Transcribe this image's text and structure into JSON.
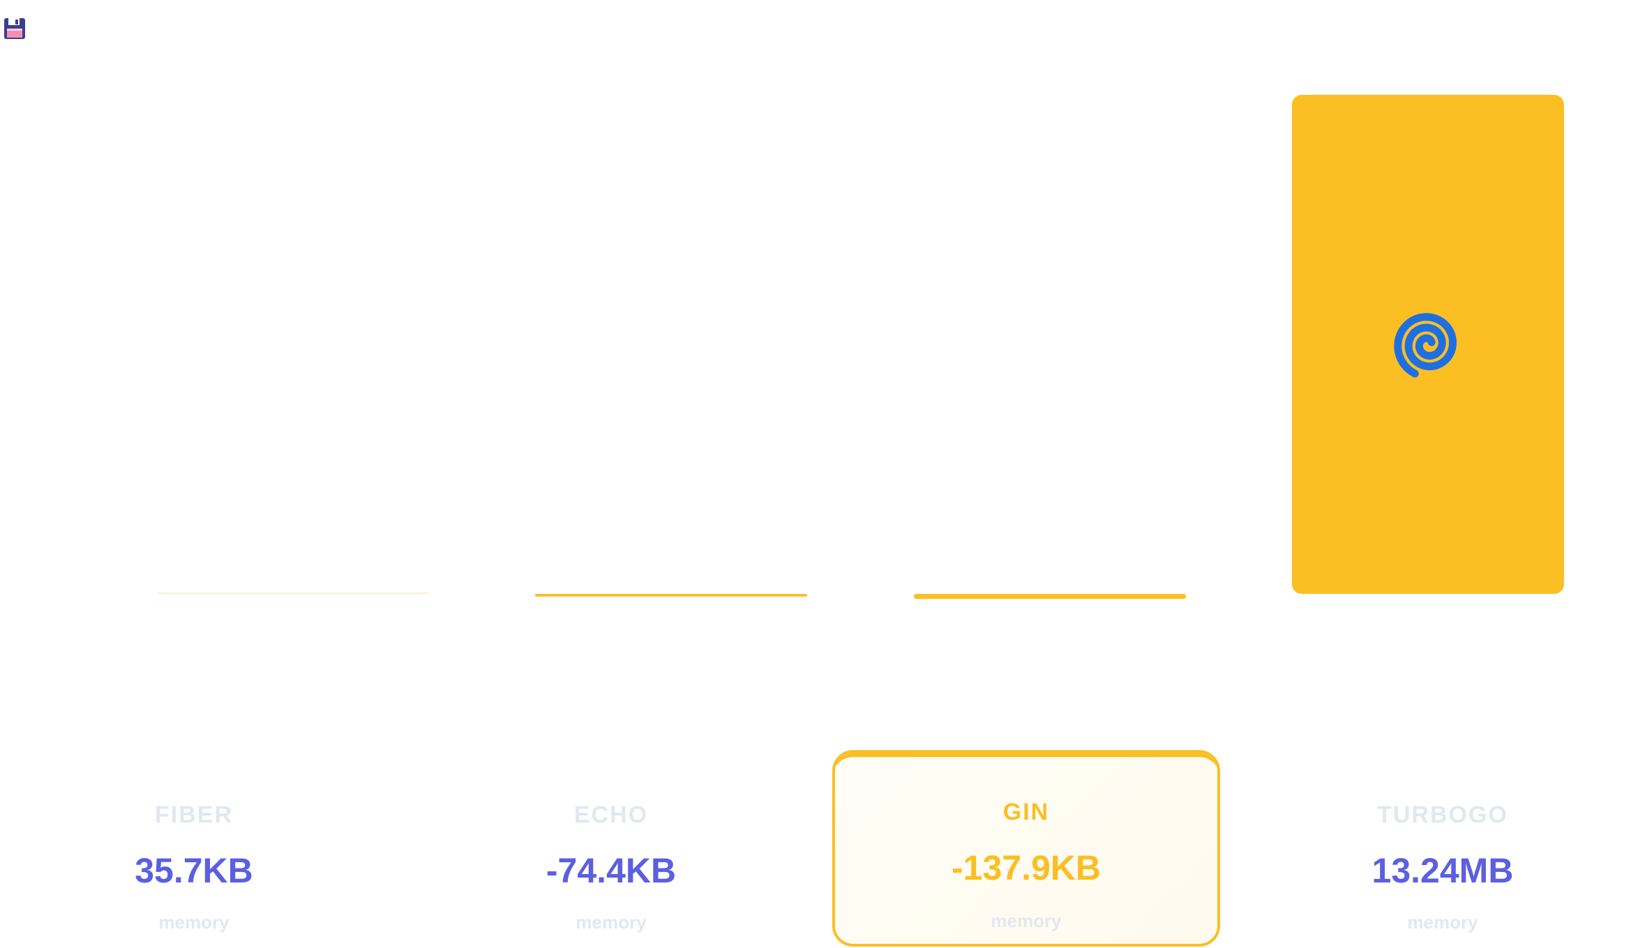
{
  "chart_data": {
    "type": "bar",
    "categories": [
      "FIBER",
      "ECHO",
      "GIN",
      "TURBOGO"
    ],
    "values": [
      35.7,
      -74.4,
      -137.9,
      13557.76
    ],
    "value_labels": [
      "35.7KB",
      "-74.4KB",
      "-137.9KB",
      "13.24MB"
    ],
    "unit_label": "memory",
    "highlight_index": 2,
    "highlight_logo_index": 3,
    "logo_icon": "spiral-logo-icon",
    "save_icon": "floppy-disk-icon",
    "colors": {
      "bar": "#fbbf24",
      "value_text": "#5b5fe0",
      "muted_text": "#e3e7ef",
      "highlight": "#fbbf24",
      "logo_blue": "#1f6fe0"
    }
  }
}
